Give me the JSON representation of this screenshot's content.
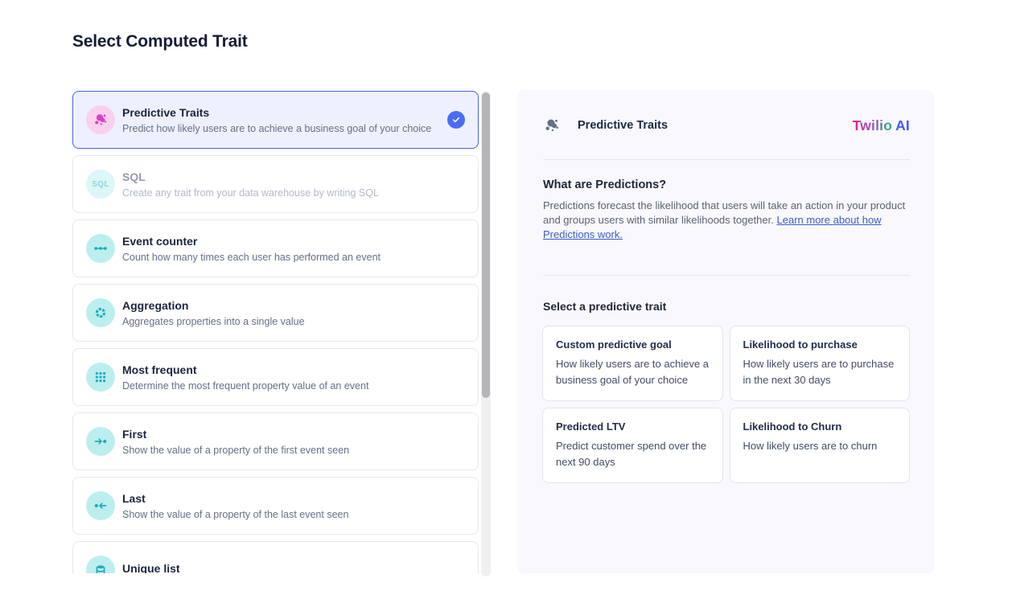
{
  "page": {
    "title": "Select Computed Trait"
  },
  "trait_list": {
    "items": [
      {
        "id": "predictive-traits",
        "title": "Predictive Traits",
        "description": "Predict how likely users are to achieve a business goal of your choice",
        "icon": "cluster-icon",
        "selected": true,
        "disabled": false
      },
      {
        "id": "sql",
        "title": "SQL",
        "description": "Create any trait from your data warehouse by writing SQL",
        "icon": "sql-icon",
        "selected": false,
        "disabled": true
      },
      {
        "id": "event-counter",
        "title": "Event counter",
        "description": "Count how many times each user has performed an event",
        "icon": "dots-row-icon",
        "selected": false,
        "disabled": false
      },
      {
        "id": "aggregation",
        "title": "Aggregation",
        "description": "Aggregates properties into a single value",
        "icon": "segmented-ring-icon",
        "selected": false,
        "disabled": false
      },
      {
        "id": "most-frequent",
        "title": "Most frequent",
        "description": "Determine the most frequent property value of an event",
        "icon": "dots-grid-icon",
        "selected": false,
        "disabled": false
      },
      {
        "id": "first",
        "title": "First",
        "description": "Show the value of a property of the first event seen",
        "icon": "arrow-to-dot-icon",
        "selected": false,
        "disabled": false
      },
      {
        "id": "last",
        "title": "Last",
        "description": "Show the value of a property of the last event seen",
        "icon": "dot-arrow-left-icon",
        "selected": false,
        "disabled": false
      },
      {
        "id": "unique-list",
        "title": "Unique list",
        "description": "",
        "icon": "database-icon",
        "selected": false,
        "disabled": false
      }
    ]
  },
  "detail_panel": {
    "header": {
      "title": "Predictive Traits",
      "brand_twilio": "Twilio",
      "brand_ai": "AI"
    },
    "about": {
      "heading": "What are Predictions?",
      "body": "Predictions forecast the likelihood that users will take an action in your product and groups users with similar likelihoods together.",
      "link": "Learn more about how Predictions work."
    },
    "select_heading": "Select a predictive trait",
    "cards": [
      {
        "title": "Custom predictive goal",
        "description": "How likely users are to achieve a business goal of your choice"
      },
      {
        "title": "Likelihood to purchase",
        "description": "How likely users are to purchase in the next 30 days"
      },
      {
        "title": "Predicted LTV",
        "description": "Predict customer spend over the next 90 days"
      },
      {
        "title": "Likelihood to Churn",
        "description": "How likely users are to churn"
      }
    ]
  },
  "colors": {
    "accent_blue": "#4263eb",
    "check_blue": "#4a6cf7",
    "selected_bg": "#eef1fd",
    "teal": "#1fadb8",
    "teal_bg": "#bceef0",
    "pink": "#de3ec1",
    "pink_bg": "#f8d1ee",
    "panel_bg": "#f8f8fd",
    "link_blue": "#3d5ccc",
    "brand_gradient_start": "#e61e8e",
    "brand_gradient_end": "#2fb57c",
    "brand_ai_blue": "#4559f4"
  }
}
